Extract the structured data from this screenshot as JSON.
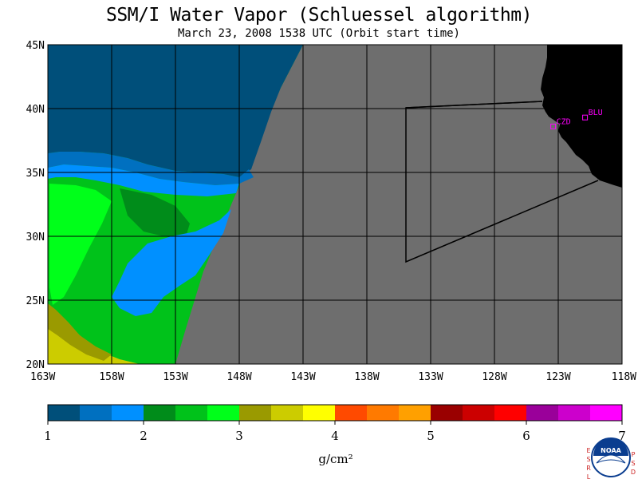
{
  "title": "SSM/I Water Vapor (Schluessel algorithm)",
  "subtitle": "March 23, 2008  1538 UTC  (Orbit start time)",
  "map": {
    "lon_range": [
      -163,
      -118
    ],
    "lat_range": [
      20,
      45
    ],
    "lat_labels": [
      "20N",
      "25N",
      "30N",
      "35N",
      "40N",
      "45N"
    ],
    "lon_labels": [
      "163W",
      "158W",
      "153W",
      "148W",
      "143W",
      "138W",
      "133W",
      "128W",
      "123W",
      "118W"
    ],
    "stations": [
      {
        "id": "CZD",
        "lon": -123.4,
        "lat": 38.6
      },
      {
        "id": "BLU",
        "lon": -120.9,
        "lat": 39.3
      }
    ],
    "colors": {
      "nodata": "#6e6e6e",
      "land": "#000000",
      "station": "#ff00ff"
    }
  },
  "colorbar": {
    "unit": "g/cm²",
    "tick_labels": [
      "1",
      "2",
      "3",
      "4",
      "5",
      "6",
      "7"
    ],
    "colors": [
      "#004f7a",
      "#0070c0",
      "#0090ff",
      "#008c1a",
      "#00c21a",
      "#00ff1a",
      "#9a9a00",
      "#cccc00",
      "#ffff00",
      "#ff4a00",
      "#ff7a00",
      "#ffa000",
      "#9a0000",
      "#cc0000",
      "#ff0000",
      "#9a009a",
      "#cc00cc",
      "#ff00ff"
    ]
  },
  "logo": {
    "left_letters": [
      "E",
      "S",
      "R",
      "L"
    ],
    "right_letters": [
      "P",
      "S",
      "D"
    ],
    "badge": "NOAA"
  }
}
